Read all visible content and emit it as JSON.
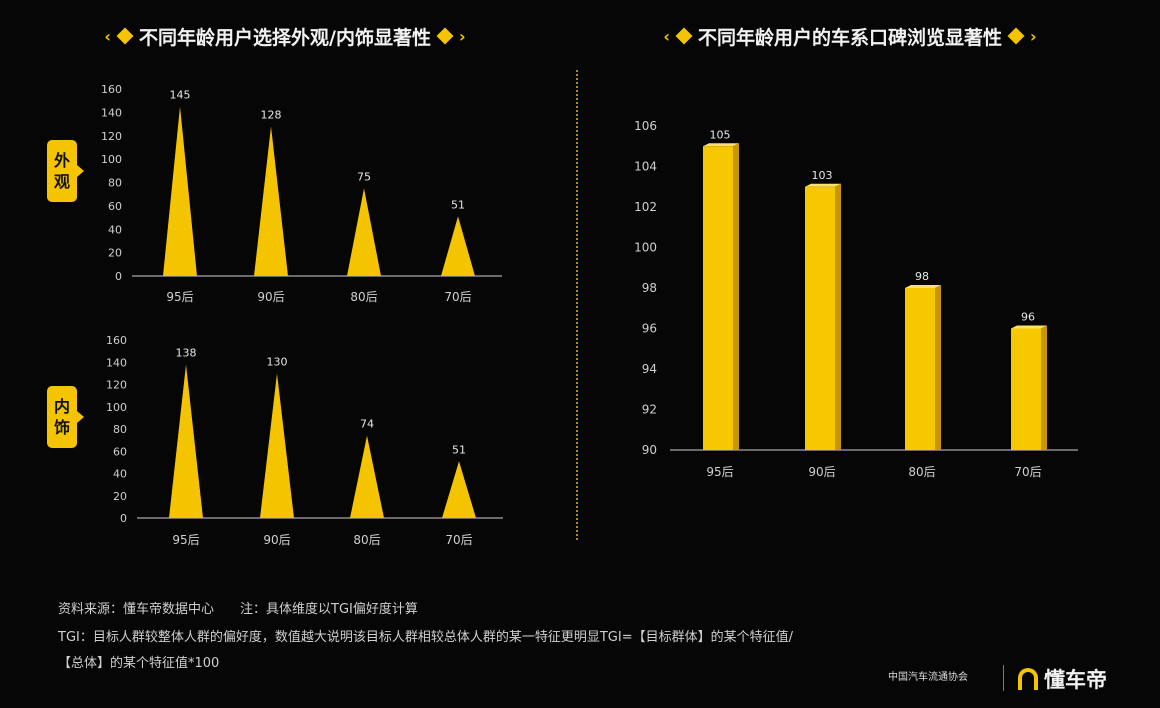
{
  "left_title": "不同年龄用户选择外观/内饰显著性",
  "right_title": "不同年龄用户的车系口碑浏览显著性",
  "tag_exterior": "外观",
  "tag_interior": "内饰",
  "chart_data": [
    {
      "type": "bar",
      "subtype": "triangle",
      "id": "exterior",
      "categories": [
        "95后",
        "90后",
        "80后",
        "70后"
      ],
      "values": [
        145,
        128,
        75,
        51
      ],
      "ylim": [
        0,
        160
      ],
      "yticks": [
        0,
        20,
        40,
        60,
        80,
        100,
        120,
        140,
        160
      ],
      "color": "#f5c400"
    },
    {
      "type": "bar",
      "subtype": "triangle",
      "id": "interior",
      "categories": [
        "95后",
        "90后",
        "80后",
        "70后"
      ],
      "values": [
        138,
        130,
        74,
        51
      ],
      "ylim": [
        0,
        160
      ],
      "yticks": [
        0,
        20,
        40,
        60,
        80,
        100,
        120,
        140,
        160
      ],
      "color": "#f5c400"
    },
    {
      "type": "bar",
      "subtype": "3d-column",
      "id": "review",
      "categories": [
        "95后",
        "90后",
        "80后",
        "70后"
      ],
      "values": [
        105,
        103,
        98,
        96
      ],
      "ylim": [
        90,
        106
      ],
      "yticks": [
        90,
        92,
        94,
        96,
        98,
        100,
        102,
        104,
        106
      ],
      "color": "#f5c400"
    }
  ],
  "footer": {
    "line1": "资料来源：懂车帝数据中心　　注：具体维度以TGI偏好度计算",
    "line2": "TGI：目标人群较整体人群的偏好度，数值越大说明该目标人群相较总体人群的某一特征更明显TGI=【目标群体】的某个特征值/",
    "line3": "【总体】的某个特征值*100"
  },
  "logo_association": "中国汽车流通协会",
  "logo_brand": "懂车帝"
}
